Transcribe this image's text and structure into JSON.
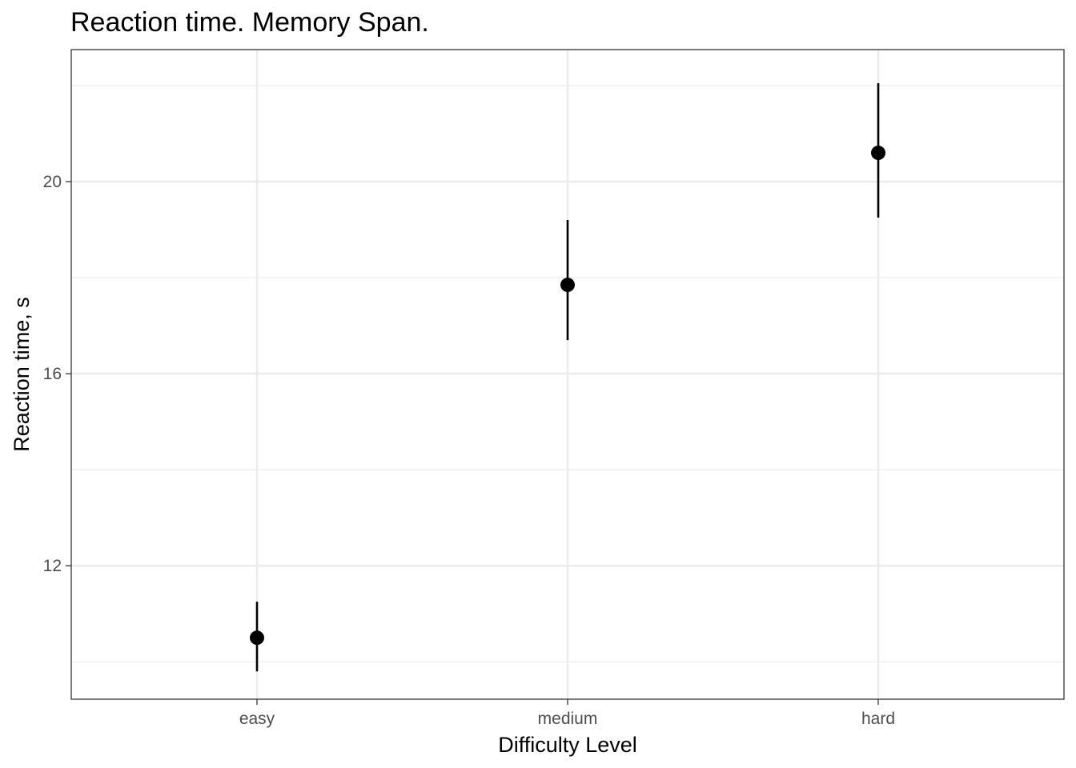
{
  "chart_data": {
    "type": "scatter",
    "title": "Reaction time. Memory Span.",
    "xlabel": "Difficulty Level",
    "ylabel": "Reaction time, s",
    "categories": [
      "easy",
      "medium",
      "hard"
    ],
    "values": [
      10.5,
      17.85,
      20.6
    ],
    "error_low": [
      9.8,
      16.7,
      19.25
    ],
    "error_high": [
      11.25,
      19.2,
      22.05
    ],
    "y_ticks": [
      12,
      16,
      20
    ],
    "y_minor_ticks": [
      10,
      14,
      18,
      22
    ],
    "ylim": [
      9.22,
      22.75
    ],
    "grid": true,
    "point_color": "#000000",
    "grid_color": "#ebebeb",
    "panel_border_color": "#333333"
  }
}
